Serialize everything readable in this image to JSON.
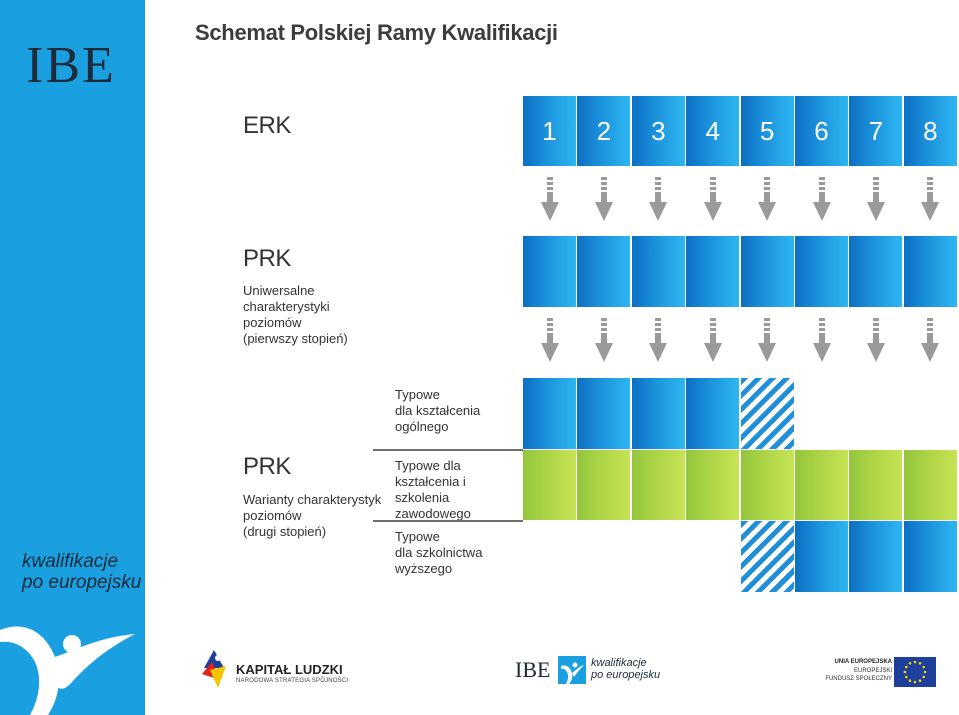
{
  "sidebar": {
    "logo": "IBE",
    "tagline_line1": "kwalifikacje",
    "tagline_line2": "po europejsku"
  },
  "title": "Schemat Polskiej Ramy Kwalifikacji",
  "erk": {
    "label": "ERK",
    "levels": [
      "1",
      "2",
      "3",
      "4",
      "5",
      "6",
      "7",
      "8"
    ]
  },
  "prk_universal": {
    "label": "PRK",
    "description_lines": [
      "Uniwersalne",
      "charakterystyki",
      "poziomów",
      "(pierwszy stopień)"
    ]
  },
  "prk_variants": {
    "label": "PRK",
    "description_lines": [
      "Warianty charakterystyk",
      "poziomów",
      "(drugi stopień)"
    ],
    "categories": [
      {
        "lines": [
          "Typowe",
          "dla kształcenia",
          "ogólnego"
        ],
        "levels_full": [
          1,
          2,
          3,
          4
        ],
        "levels_partial": [
          5
        ],
        "color": "#1e8fd8"
      },
      {
        "lines": [
          "Typowe dla",
          "kształcenia i szkolenia",
          "zawodowego"
        ],
        "levels_full": [
          1,
          2,
          3,
          4,
          5,
          6,
          7,
          8
        ],
        "levels_partial": [],
        "color": "#a6cf45"
      },
      {
        "lines": [
          "Typowe",
          "dla szkolnictwa",
          "wyższego"
        ],
        "levels_full": [
          6,
          7,
          8
        ],
        "levels_partial": [
          5
        ],
        "color": "#1e8fd8"
      }
    ]
  },
  "footer": {
    "kapital_title": "KAPITAŁ LUDZKI",
    "kapital_subtitle": "NARODOWA STRATEGIA SPÓJNOŚCI",
    "ibe_logo": "IBE",
    "ibe_tag1": "kwalifikacje",
    "ibe_tag2": "po europejsku",
    "ue_line1": "UNIA EUROPEJSKA",
    "ue_line2": "EUROPEJSKI",
    "ue_line3": "FUNDUSZ SPOŁECZNY"
  },
  "colors": {
    "sidebar": "#1aa0e0",
    "blue_cell": "#1e8fd8",
    "green_cell": "#a6cf45",
    "arrow": "#9a9a9a"
  }
}
